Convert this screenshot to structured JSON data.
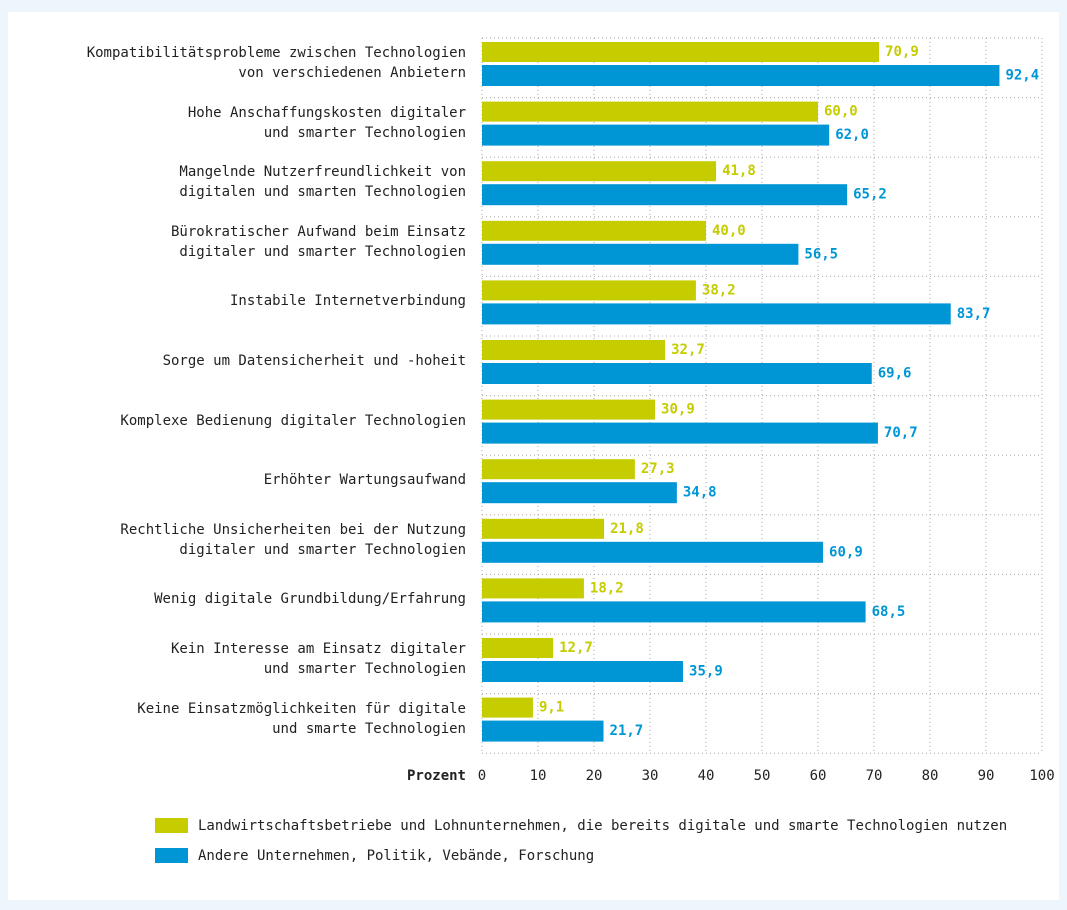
{
  "chart_data": {
    "type": "bar",
    "orientation": "horizontal",
    "x_label": "Prozent",
    "categories": [
      "Kompatibilitätsprobleme zwischen Technologien\nvon verschiedenen Anbietern",
      "Hohe Anschaffungskosten digitaler\nund smarter Technologien",
      "Mangelnde Nutzerfreundlichkeit von\ndigitalen und smarten Technologien",
      "Bürokratischer Aufwand beim Einsatz\ndigitaler und smarter Technologien",
      "Instabile Internetverbindung",
      "Sorge um Datensicherheit und -hoheit",
      "Komplexe Bedienung digitaler Technologien",
      "Erhöhter Wartungsaufwand",
      "Rechtliche Unsicherheiten bei der Nutzung\ndigitaler und smarter Technologien",
      "Wenig digitale Grundbildung/Erfahrung",
      "Kein Interesse am Einsatz digitaler\nund smarter Technologien",
      "Keine Einsatzmöglichkeiten für digitale\nund smarte Technologien"
    ],
    "series": [
      {
        "name": "Landwirtschaftsbetriebe und Lohnunternehmen, die bereits digitale und smarte Technologien nutzen",
        "color": "#c5cc00",
        "values": [
          70.9,
          60.0,
          41.8,
          40.0,
          38.2,
          32.7,
          30.9,
          27.3,
          21.8,
          18.2,
          12.7,
          9.1
        ],
        "value_labels": [
          "70,9",
          "60,0",
          "41,8",
          "40,0",
          "38,2",
          "32,7",
          "30,9",
          "27,3",
          "21,8",
          "18,2",
          "12,7",
          "9,1"
        ]
      },
      {
        "name": "Andere Unternehmen, Politik, Vebände, Forschung",
        "color": "#0096d6",
        "values": [
          92.4,
          62.0,
          65.2,
          56.5,
          83.7,
          69.6,
          70.7,
          34.8,
          60.9,
          68.5,
          35.9,
          21.7
        ],
        "value_labels": [
          "92,4",
          "62,0",
          "65,2",
          "56,5",
          "83,7",
          "69,6",
          "70,7",
          "34,8",
          "60,9",
          "68,5",
          "35,9",
          "21,7"
        ]
      }
    ],
    "xlim": [
      0,
      100
    ],
    "xticks": [
      0,
      10,
      20,
      30,
      40,
      50,
      60,
      70,
      80,
      90,
      100
    ],
    "grid": true
  }
}
